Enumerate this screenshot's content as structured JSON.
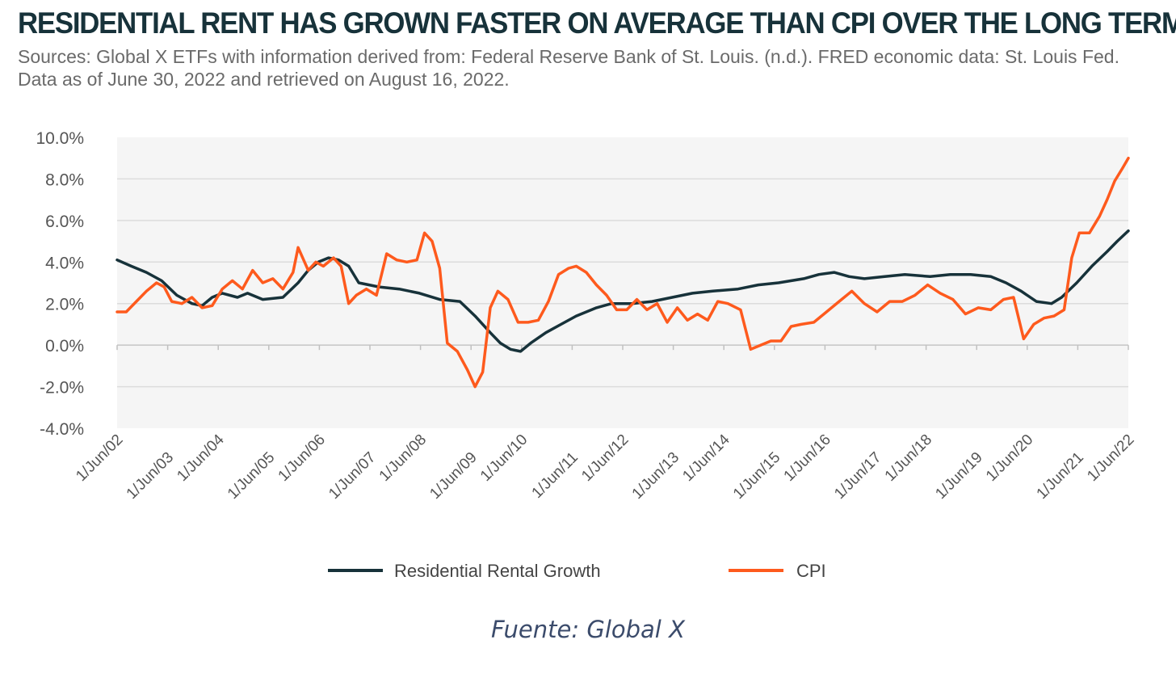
{
  "title": "RESIDENTIAL RENT HAS GROWN FASTER ON AVERAGE THAN CPI OVER THE LONG TERM",
  "subtitle": "Sources: Global X ETFs with information derived from: Federal Reserve Bank of St. Louis. (n.d.). FRED economic data: St. Louis Fed. Data as of June 30, 2022 and retrieved on August 16, 2022.",
  "source_note": "Fuente: Global X",
  "colors": {
    "rent": "#17323a",
    "cpi": "#fe5a1d",
    "plot_bg": "#f5f5f5",
    "grid": "#dcdcdc"
  },
  "chart_data": {
    "type": "line",
    "x_ticks": [
      "1/Jun/02",
      "1/Jun/03",
      "1/Jun/04",
      "1/Jun/05",
      "1/Jun/06",
      "1/Jun/07",
      "1/Jun/08",
      "1/Jun/09",
      "1/Jun/10",
      "1/Jun/11",
      "1/Jun/12",
      "1/Jun/13",
      "1/Jun/14",
      "1/Jun/15",
      "1/Jun/16",
      "1/Jun/17",
      "1/Jun/18",
      "1/Jun/19",
      "1/Jun/20",
      "1/Jun/21",
      "1/Jun/22"
    ],
    "y_ticks": [
      "10.0%",
      "8.0%",
      "6.0%",
      "4.0%",
      "2.0%",
      "0.0%",
      "-2.0%",
      "-4.0%"
    ],
    "ylim": [
      -4,
      10
    ],
    "grid": "horizontal",
    "legend": "bottom",
    "x_unit": "year",
    "series": [
      {
        "name": "Residential Rental Growth",
        "color": "#17323a",
        "points": [
          [
            2002.42,
            4.1
          ],
          [
            2002.7,
            3.8
          ],
          [
            2003.0,
            3.5
          ],
          [
            2003.3,
            3.1
          ],
          [
            2003.6,
            2.4
          ],
          [
            2003.9,
            2.0
          ],
          [
            2004.1,
            1.9
          ],
          [
            2004.3,
            2.3
          ],
          [
            2004.5,
            2.5
          ],
          [
            2004.8,
            2.3
          ],
          [
            2005.0,
            2.5
          ],
          [
            2005.3,
            2.2
          ],
          [
            2005.7,
            2.3
          ],
          [
            2006.0,
            3.0
          ],
          [
            2006.2,
            3.6
          ],
          [
            2006.4,
            4.0
          ],
          [
            2006.6,
            4.2
          ],
          [
            2006.8,
            4.1
          ],
          [
            2007.0,
            3.8
          ],
          [
            2007.2,
            3.0
          ],
          [
            2007.6,
            2.8
          ],
          [
            2008.0,
            2.7
          ],
          [
            2008.4,
            2.5
          ],
          [
            2008.8,
            2.2
          ],
          [
            2009.2,
            2.1
          ],
          [
            2009.5,
            1.4
          ],
          [
            2009.8,
            0.6
          ],
          [
            2010.0,
            0.1
          ],
          [
            2010.2,
            -0.2
          ],
          [
            2010.4,
            -0.3
          ],
          [
            2010.6,
            0.1
          ],
          [
            2010.9,
            0.6
          ],
          [
            2011.2,
            1.0
          ],
          [
            2011.5,
            1.4
          ],
          [
            2011.9,
            1.8
          ],
          [
            2012.2,
            2.0
          ],
          [
            2012.6,
            2.0
          ],
          [
            2013.0,
            2.1
          ],
          [
            2013.4,
            2.3
          ],
          [
            2013.8,
            2.5
          ],
          [
            2014.2,
            2.6
          ],
          [
            2014.7,
            2.7
          ],
          [
            2015.1,
            2.9
          ],
          [
            2015.5,
            3.0
          ],
          [
            2016.0,
            3.2
          ],
          [
            2016.3,
            3.4
          ],
          [
            2016.6,
            3.5
          ],
          [
            2016.9,
            3.3
          ],
          [
            2017.2,
            3.2
          ],
          [
            2017.6,
            3.3
          ],
          [
            2018.0,
            3.4
          ],
          [
            2018.5,
            3.3
          ],
          [
            2018.9,
            3.4
          ],
          [
            2019.3,
            3.4
          ],
          [
            2019.7,
            3.3
          ],
          [
            2020.0,
            3.0
          ],
          [
            2020.3,
            2.6
          ],
          [
            2020.6,
            2.1
          ],
          [
            2020.9,
            2.0
          ],
          [
            2021.1,
            2.3
          ],
          [
            2021.4,
            3.0
          ],
          [
            2021.7,
            3.8
          ],
          [
            2022.0,
            4.5
          ],
          [
            2022.2,
            5.0
          ],
          [
            2022.42,
            5.5
          ]
        ]
      },
      {
        "name": "CPI",
        "color": "#fe5a1d",
        "points": [
          [
            2002.42,
            1.6
          ],
          [
            2002.6,
            1.6
          ],
          [
            2002.8,
            2.1
          ],
          [
            2003.0,
            2.6
          ],
          [
            2003.2,
            3.0
          ],
          [
            2003.35,
            2.8
          ],
          [
            2003.5,
            2.1
          ],
          [
            2003.7,
            2.0
          ],
          [
            2003.9,
            2.3
          ],
          [
            2004.1,
            1.8
          ],
          [
            2004.3,
            1.9
          ],
          [
            2004.5,
            2.7
          ],
          [
            2004.7,
            3.1
          ],
          [
            2004.9,
            2.7
          ],
          [
            2005.1,
            3.6
          ],
          [
            2005.3,
            3.0
          ],
          [
            2005.5,
            3.2
          ],
          [
            2005.7,
            2.7
          ],
          [
            2005.9,
            3.5
          ],
          [
            2006.0,
            4.7
          ],
          [
            2006.2,
            3.6
          ],
          [
            2006.35,
            4.0
          ],
          [
            2006.5,
            3.8
          ],
          [
            2006.7,
            4.2
          ],
          [
            2006.85,
            3.8
          ],
          [
            2007.0,
            2.0
          ],
          [
            2007.15,
            2.4
          ],
          [
            2007.35,
            2.7
          ],
          [
            2007.55,
            2.4
          ],
          [
            2007.75,
            4.4
          ],
          [
            2007.95,
            4.1
          ],
          [
            2008.15,
            4.0
          ],
          [
            2008.35,
            4.1
          ],
          [
            2008.5,
            5.4
          ],
          [
            2008.65,
            5.0
          ],
          [
            2008.8,
            3.7
          ],
          [
            2008.95,
            0.1
          ],
          [
            2009.15,
            -0.3
          ],
          [
            2009.35,
            -1.2
          ],
          [
            2009.5,
            -2.0
          ],
          [
            2009.65,
            -1.3
          ],
          [
            2009.8,
            1.8
          ],
          [
            2009.95,
            2.6
          ],
          [
            2010.15,
            2.2
          ],
          [
            2010.35,
            1.1
          ],
          [
            2010.55,
            1.1
          ],
          [
            2010.75,
            1.2
          ],
          [
            2010.95,
            2.1
          ],
          [
            2011.15,
            3.4
          ],
          [
            2011.35,
            3.7
          ],
          [
            2011.5,
            3.8
          ],
          [
            2011.7,
            3.5
          ],
          [
            2011.9,
            2.9
          ],
          [
            2012.1,
            2.4
          ],
          [
            2012.3,
            1.7
          ],
          [
            2012.5,
            1.7
          ],
          [
            2012.7,
            2.2
          ],
          [
            2012.9,
            1.7
          ],
          [
            2013.1,
            2.0
          ],
          [
            2013.3,
            1.1
          ],
          [
            2013.5,
            1.8
          ],
          [
            2013.7,
            1.2
          ],
          [
            2013.9,
            1.5
          ],
          [
            2014.1,
            1.2
          ],
          [
            2014.3,
            2.1
          ],
          [
            2014.5,
            2.0
          ],
          [
            2014.75,
            1.7
          ],
          [
            2014.95,
            -0.2
          ],
          [
            2015.15,
            0.0
          ],
          [
            2015.35,
            0.2
          ],
          [
            2015.55,
            0.2
          ],
          [
            2015.75,
            0.9
          ],
          [
            2015.95,
            1.0
          ],
          [
            2016.2,
            1.1
          ],
          [
            2016.45,
            1.6
          ],
          [
            2016.7,
            2.1
          ],
          [
            2016.95,
            2.6
          ],
          [
            2017.2,
            2.0
          ],
          [
            2017.45,
            1.6
          ],
          [
            2017.7,
            2.1
          ],
          [
            2017.95,
            2.1
          ],
          [
            2018.2,
            2.4
          ],
          [
            2018.45,
            2.9
          ],
          [
            2018.7,
            2.5
          ],
          [
            2018.95,
            2.2
          ],
          [
            2019.2,
            1.5
          ],
          [
            2019.45,
            1.8
          ],
          [
            2019.7,
            1.7
          ],
          [
            2019.95,
            2.2
          ],
          [
            2020.15,
            2.3
          ],
          [
            2020.35,
            0.3
          ],
          [
            2020.55,
            1.0
          ],
          [
            2020.75,
            1.3
          ],
          [
            2020.95,
            1.4
          ],
          [
            2021.15,
            1.7
          ],
          [
            2021.3,
            4.2
          ],
          [
            2021.45,
            5.4
          ],
          [
            2021.65,
            5.4
          ],
          [
            2021.85,
            6.2
          ],
          [
            2022.0,
            7.0
          ],
          [
            2022.15,
            7.9
          ],
          [
            2022.3,
            8.5
          ],
          [
            2022.42,
            9.0
          ]
        ]
      }
    ]
  }
}
